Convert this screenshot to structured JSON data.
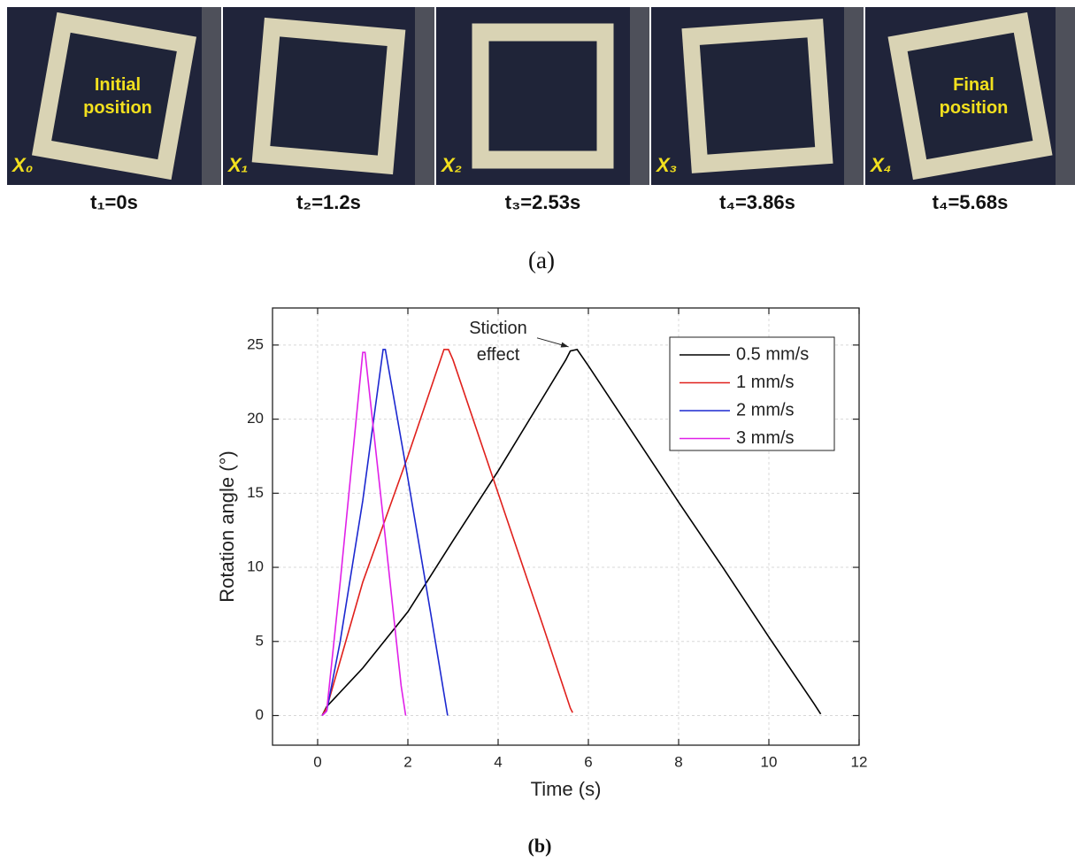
{
  "panel_a": {
    "frames": [
      {
        "label": "X₀",
        "overlay": [
          "Initial",
          "position"
        ],
        "caption": "t₁=0s"
      },
      {
        "label": "X₁",
        "caption": "t₂=1.2s"
      },
      {
        "label": "X₂",
        "caption": "t₃=2.53s"
      },
      {
        "label": "X₃",
        "caption": "t₄=3.86s"
      },
      {
        "label": "X₄",
        "overlay": [
          "Final",
          "position"
        ],
        "caption": "t₄=5.68s"
      }
    ],
    "caption": "(a)"
  },
  "chart_data": {
    "type": "line",
    "x_label": "Time (s)",
    "y_label": "Rotation angle (°)",
    "xlim": [
      -1,
      12
    ],
    "xticks": [
      0,
      2,
      4,
      6,
      8,
      10,
      12
    ],
    "ylim": [
      -2,
      27.5
    ],
    "yticks": [
      0,
      5,
      10,
      15,
      20,
      25
    ],
    "grid": true,
    "legend": "top-right",
    "annotation": {
      "lines": [
        "Stiction",
        "effect"
      ],
      "x": 4.0,
      "y": 25.6,
      "arrow_x": 5.6,
      "arrow_y": 24.7
    },
    "series": [
      {
        "name": "0.5 mm/s",
        "color": "#000000",
        "x": [
          0.1,
          0.2,
          1,
          2,
          3,
          4,
          5,
          5.5,
          5.6,
          5.75,
          6,
          7,
          8,
          9,
          10,
          11,
          11.15
        ],
        "values": [
          0,
          0.6,
          3.2,
          7,
          11.8,
          16.5,
          21.5,
          24,
          24.6,
          24.7,
          23.6,
          19,
          14.4,
          9.9,
          5.3,
          0.8,
          0.1
        ]
      },
      {
        "name": "1 mm/s",
        "color": "#e0201c",
        "x": [
          0.1,
          0.2,
          1,
          2,
          2.8,
          2.9,
          3,
          4,
          5,
          5.6,
          5.65
        ],
        "values": [
          0,
          0.5,
          9,
          17.5,
          24.7,
          24.7,
          24,
          15,
          6,
          0.5,
          0.2
        ]
      },
      {
        "name": "2 mm/s",
        "color": "#1c28d0",
        "x": [
          0.1,
          0.2,
          0.5,
          1,
          1.45,
          1.5,
          2,
          2.5,
          2.88
        ],
        "values": [
          0,
          0.3,
          5,
          14.5,
          24.7,
          24.7,
          16,
          7,
          0
        ]
      },
      {
        "name": "3 mm/s",
        "color": "#e020e8",
        "x": [
          0.1,
          0.2,
          0.5,
          1,
          1.05,
          1.5,
          1.85,
          1.95
        ],
        "values": [
          0,
          0.3,
          9,
          24.5,
          24.5,
          12,
          2,
          0
        ]
      }
    ]
  },
  "panel_b_caption": "(b)"
}
